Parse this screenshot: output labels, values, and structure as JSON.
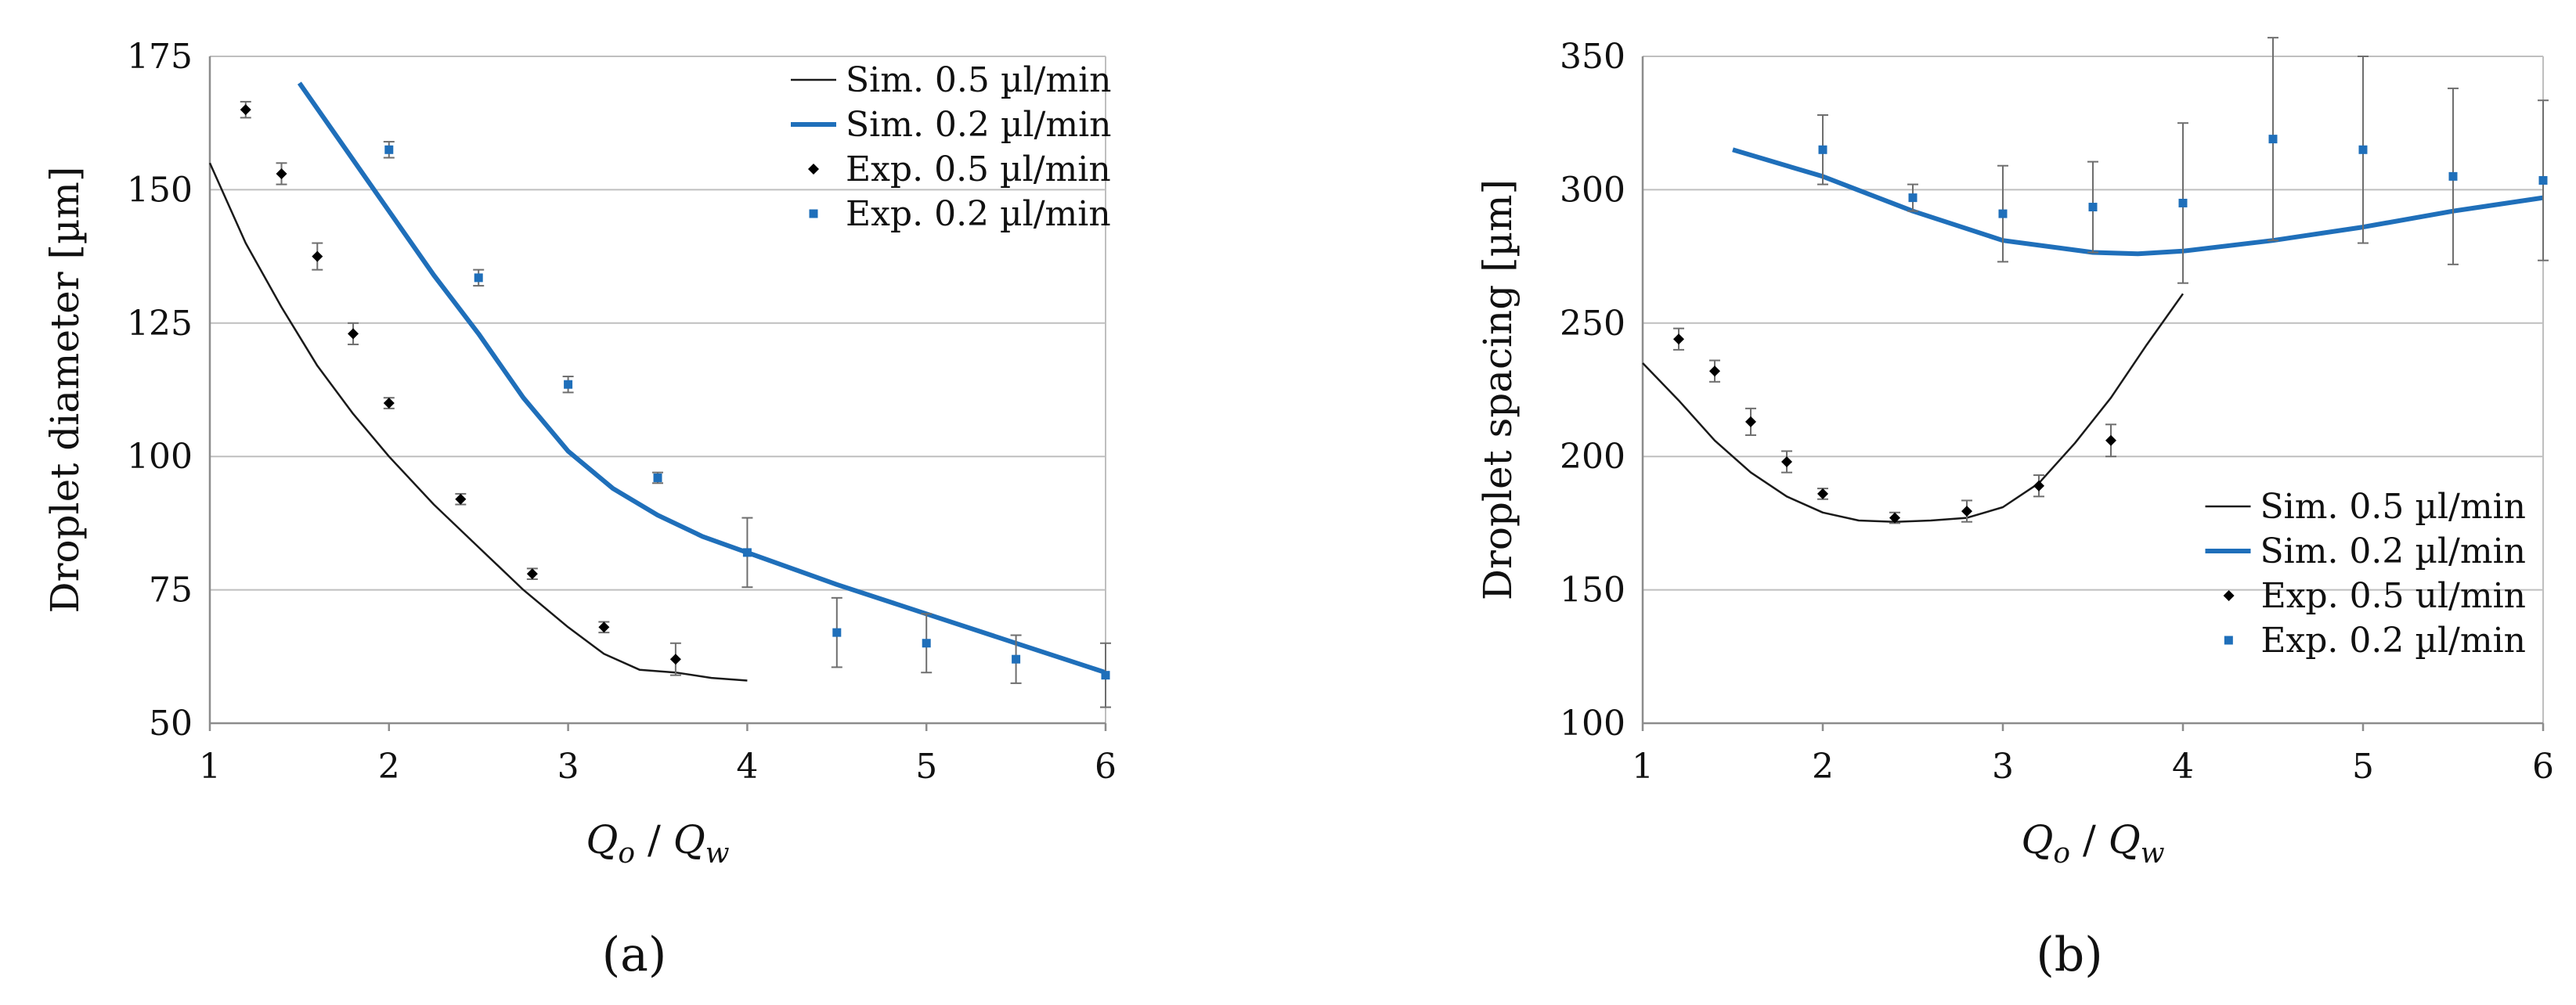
{
  "chart_data": [
    {
      "type": "line",
      "panel_label": "(a)",
      "xlabel": "Q_o / Q_w",
      "xlabel_parts": {
        "left": "Q",
        "left_sub": "o",
        "sep": " / ",
        "right": "Q",
        "right_sub": "w"
      },
      "ylabel": "Droplet diameter [µm]",
      "xlim": [
        1,
        6
      ],
      "ylim": [
        50,
        175
      ],
      "xticks": [
        "1",
        "2",
        "3",
        "4",
        "5",
        "6"
      ],
      "yticks": [
        "50",
        "75",
        "100",
        "125",
        "150",
        "175"
      ],
      "legend_position": "top-right",
      "colors": {
        "sim05": "#1a1a1a",
        "sim02": "#1f6fba",
        "exp05": "#000000",
        "exp02": "#1f6fba"
      },
      "series": [
        {
          "key": "sim05",
          "name": "Sim. 0.5 µl/min",
          "kind": "line",
          "x": [
            1.0,
            1.2,
            1.4,
            1.6,
            1.8,
            2.0,
            2.25,
            2.5,
            2.75,
            3.0,
            3.2,
            3.4,
            3.6,
            3.8,
            4.0
          ],
          "y": [
            155,
            140,
            128,
            117,
            108,
            100,
            91,
            83,
            75,
            68,
            63,
            60,
            59.5,
            58.5,
            58
          ]
        },
        {
          "key": "sim02",
          "name": "Sim. 0.2 µl/min",
          "kind": "line",
          "x": [
            1.5,
            1.75,
            2.0,
            2.25,
            2.5,
            2.75,
            3.0,
            3.25,
            3.5,
            3.75,
            4.0,
            4.5,
            5.0,
            5.5,
            6.0
          ],
          "y": [
            170,
            158,
            146,
            134,
            123,
            111,
            101,
            94,
            89,
            85,
            82,
            76,
            70.5,
            65,
            59.5
          ]
        },
        {
          "key": "exp05",
          "name": "Exp. 0.5 µl/min",
          "kind": "diamond",
          "x": [
            1.2,
            1.4,
            1.6,
            1.8,
            2.0,
            2.4,
            2.8,
            3.2,
            3.6
          ],
          "y": [
            165,
            153,
            137.5,
            123,
            110,
            92,
            78,
            68,
            62
          ],
          "err": [
            1.5,
            2,
            2.5,
            2,
            1,
            1,
            1,
            1,
            3
          ]
        },
        {
          "key": "exp02",
          "name": "Exp. 0.2 µl/min",
          "kind": "square",
          "x": [
            2.0,
            2.5,
            3.0,
            3.5,
            4.0,
            4.5,
            5.0,
            5.5,
            6.0
          ],
          "y": [
            157.5,
            133.5,
            113.5,
            96,
            82,
            67,
            65,
            62,
            59
          ],
          "err": [
            1.5,
            1.5,
            1.5,
            1,
            6.5,
            6.5,
            5.5,
            4.5,
            6
          ]
        }
      ]
    },
    {
      "type": "line",
      "panel_label": "(b)",
      "xlabel": "Q_o / Q_w",
      "xlabel_parts": {
        "left": "Q",
        "left_sub": "o",
        "sep": " / ",
        "right": "Q",
        "right_sub": "w"
      },
      "ylabel": "Droplet spacing [µm]",
      "xlim": [
        1,
        6
      ],
      "ylim": [
        100,
        350
      ],
      "xticks": [
        "1",
        "2",
        "3",
        "4",
        "5",
        "6"
      ],
      "yticks": [
        "100",
        "150",
        "200",
        "250",
        "300",
        "350"
      ],
      "legend_position": "bottom-right",
      "colors": {
        "sim05": "#1a1a1a",
        "sim02": "#1f6fba",
        "exp05": "#000000",
        "exp02": "#1f6fba"
      },
      "series": [
        {
          "key": "sim05",
          "name": "Sim. 0.5 µl/min",
          "kind": "line",
          "x": [
            1.0,
            1.2,
            1.4,
            1.6,
            1.8,
            2.0,
            2.2,
            2.4,
            2.6,
            2.8,
            3.0,
            3.2,
            3.4,
            3.6,
            3.8,
            4.0
          ],
          "y": [
            235,
            221,
            206,
            194,
            185,
            179,
            176,
            175.5,
            176,
            177,
            181,
            190,
            205,
            222,
            242,
            261
          ]
        },
        {
          "key": "sim02",
          "name": "Sim. 0.2 µl/min",
          "kind": "line",
          "x": [
            1.5,
            2.0,
            2.5,
            3.0,
            3.5,
            3.75,
            4.0,
            4.5,
            5.0,
            5.5,
            6.0
          ],
          "y": [
            315,
            305,
            292,
            281,
            276.5,
            276,
            277,
            281,
            286,
            292,
            297
          ]
        },
        {
          "key": "exp05",
          "name": "Exp. 0.5 ul/min",
          "kind": "diamond",
          "x": [
            1.2,
            1.4,
            1.6,
            1.8,
            2.0,
            2.4,
            2.8,
            3.2,
            3.6
          ],
          "y": [
            244,
            232,
            213,
            198,
            186,
            177,
            179.5,
            189,
            206
          ],
          "err": [
            4,
            4,
            5,
            4,
            2,
            2,
            4,
            4,
            6
          ]
        },
        {
          "key": "exp02",
          "name": "Exp. 0.2 µl/min",
          "kind": "square",
          "x": [
            2.0,
            2.5,
            3.0,
            3.5,
            4.0,
            4.5,
            5.0,
            5.5,
            6.0
          ],
          "y": [
            315,
            297,
            291,
            293.5,
            295,
            319,
            315,
            305,
            303.5
          ],
          "err": [
            13,
            5,
            18,
            17,
            30,
            38,
            35,
            33,
            30
          ]
        }
      ]
    }
  ]
}
